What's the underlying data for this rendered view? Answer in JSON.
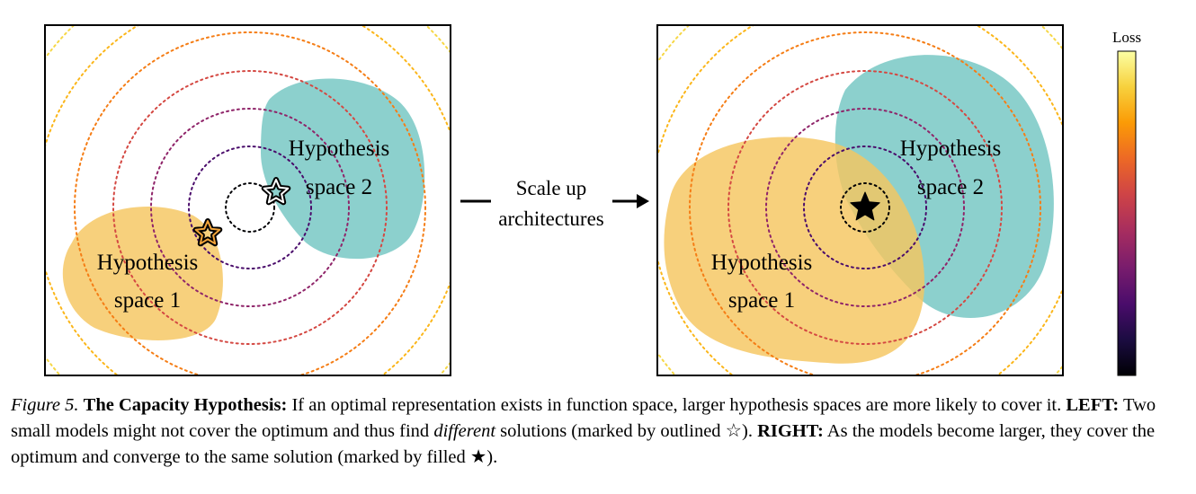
{
  "left_panel": {
    "region_2_label": [
      "Hypothesis",
      "space 2"
    ],
    "region_1_label": [
      "Hypothesis",
      "space 1"
    ],
    "marker": "outlined-star"
  },
  "right_panel": {
    "region_2_label": [
      "Hypothesis",
      "space 2"
    ],
    "region_1_label": [
      "Hypothesis",
      "space 1"
    ],
    "marker": "filled-star"
  },
  "transition": {
    "line1": "Scale up",
    "line2": "architectures"
  },
  "colorbar": {
    "title": "Loss",
    "colors": [
      "#fcffa4",
      "#f7d13d",
      "#fb9b06",
      "#ed6925",
      "#cf4446",
      "#a52c60",
      "#781c6d",
      "#4a0c6b",
      "#1b0c41",
      "#000004"
    ]
  },
  "region_colors": {
    "space_1": "#f5c65f",
    "space_2": "#6cc3bf"
  },
  "caption": {
    "figure_label": "Figure 5.",
    "title": "The Capacity Hypothesis:",
    "sentence1": "If an optimal representation exists in function space, larger hypothesis spaces are more likely to cover it.",
    "left_label": "LEFT:",
    "left_text_a": "Two small models might not cover the optimum and thus find",
    "left_text_em": "different",
    "left_text_b": "solutions (marked by outlined ☆).",
    "right_label": "RIGHT:",
    "right_text": "As the models become larger, they cover the optimum and converge to the same solution (marked by filled ★)."
  }
}
